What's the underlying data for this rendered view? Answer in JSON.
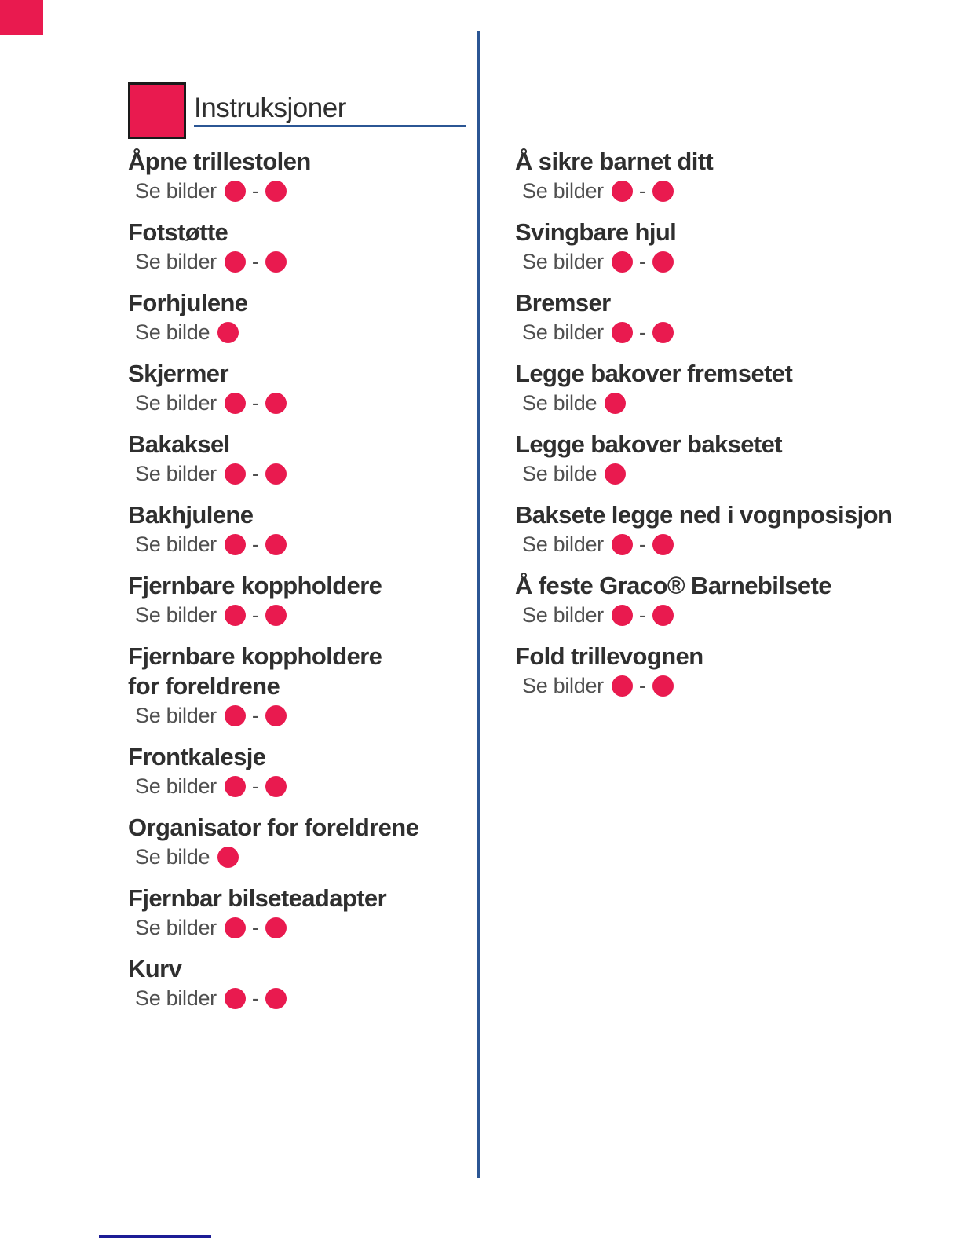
{
  "header": {
    "title": "Instruksjoner"
  },
  "separators": {
    "dash": "-"
  },
  "colors": {
    "accent_red": "#E91A4F",
    "rule_blue": "#2B5694",
    "footer_rule_blue": "#1C1C96"
  },
  "icons": {
    "section_square": "red-square",
    "figure_dot": "red-circle"
  },
  "toc": {
    "left": [
      {
        "title_lines": [
          "Åpne trillestolen"
        ],
        "see_label": "Se bilder",
        "dots": 2
      },
      {
        "title_lines": [
          "Fotstøtte"
        ],
        "see_label": "Se bilder",
        "dots": 2
      },
      {
        "title_lines": [
          "Forhjulene"
        ],
        "see_label": "Se bilde",
        "dots": 1
      },
      {
        "title_lines": [
          "Skjermer"
        ],
        "see_label": "Se bilder",
        "dots": 2
      },
      {
        "title_lines": [
          "Bakaksel"
        ],
        "see_label": "Se bilder",
        "dots": 2
      },
      {
        "title_lines": [
          "Bakhjulene"
        ],
        "see_label": "Se bilder",
        "dots": 2
      },
      {
        "title_lines": [
          "Fjernbare koppholdere"
        ],
        "see_label": "Se bilder",
        "dots": 2
      },
      {
        "title_lines": [
          "Fjernbare koppholdere",
          "for foreldrene"
        ],
        "see_label": "Se bilder",
        "dots": 2
      },
      {
        "title_lines": [
          "Frontkalesje"
        ],
        "see_label": "Se bilder",
        "dots": 2
      },
      {
        "title_lines": [
          "Organisator for foreldrene"
        ],
        "see_label": "Se bilde",
        "dots": 1
      },
      {
        "title_lines": [
          "Fjernbar bilseteadapter"
        ],
        "see_label": "Se bilder",
        "dots": 2
      },
      {
        "title_lines": [
          "Kurv"
        ],
        "see_label": "Se bilder",
        "dots": 2
      }
    ],
    "right": [
      {
        "title_lines": [
          "Å sikre barnet ditt"
        ],
        "see_label": "Se bilder",
        "dots": 2
      },
      {
        "title_lines": [
          "Svingbare hjul"
        ],
        "see_label": "Se bilder",
        "dots": 2
      },
      {
        "title_lines": [
          "Bremser"
        ],
        "see_label": "Se bilder",
        "dots": 2
      },
      {
        "title_lines": [
          "Legge bakover fremsetet"
        ],
        "see_label": "Se bilde",
        "dots": 1
      },
      {
        "title_lines": [
          "Legge bakover baksetet"
        ],
        "see_label": "Se bilde",
        "dots": 1
      },
      {
        "title_lines": [
          "Baksete legge ned i vognposisjon"
        ],
        "see_label": "Se bilder",
        "dots": 2
      },
      {
        "title_lines": [
          "Å feste Graco® Barnebilsete"
        ],
        "see_label": "Se bilder",
        "dots": 2
      },
      {
        "title_lines": [
          "Fold trillevognen"
        ],
        "see_label": "Se bilder",
        "dots": 2
      }
    ]
  }
}
